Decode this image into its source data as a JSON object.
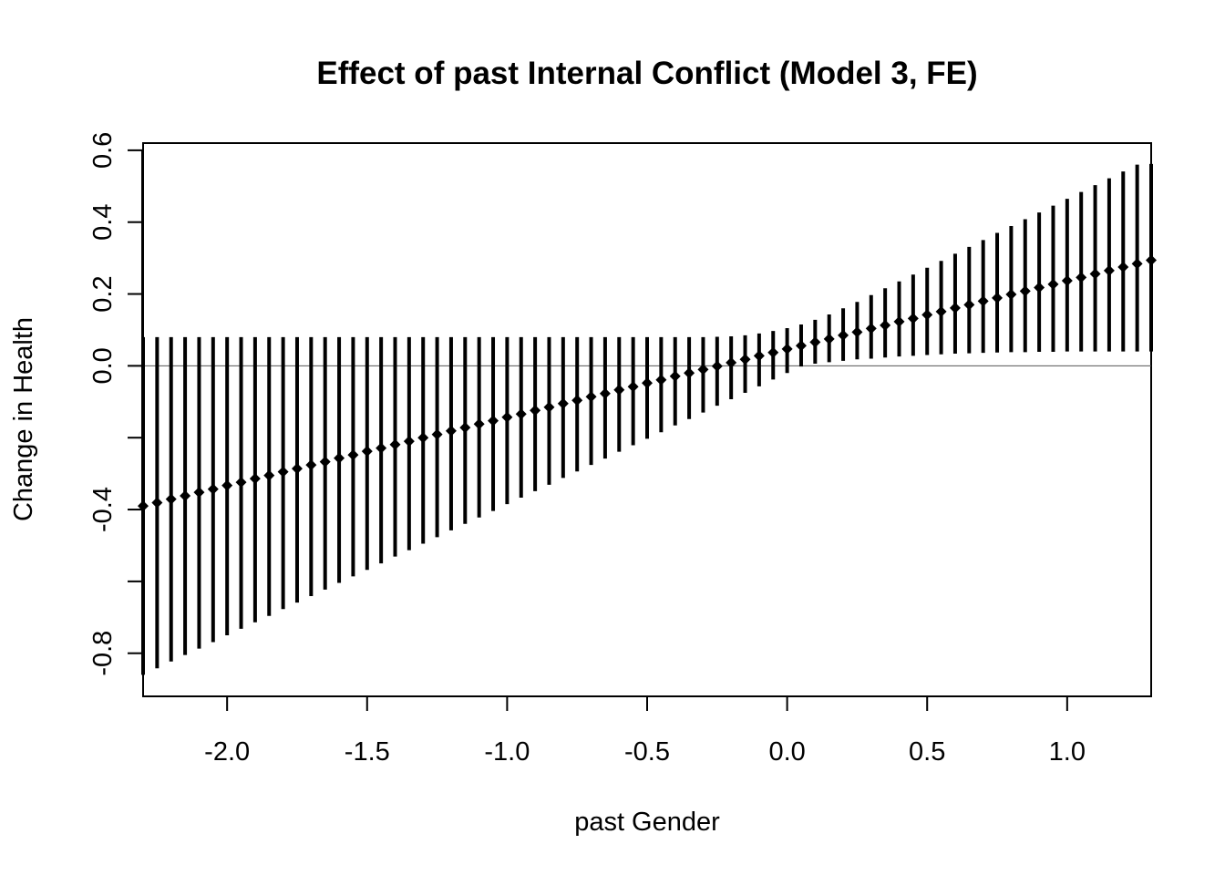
{
  "chart_data": {
    "type": "scatter",
    "title": "Effect of past Internal Conflict (Model 3, FE)",
    "xlabel": "past Gender",
    "ylabel": "Change in Health",
    "xlim": [
      -2.3,
      1.3
    ],
    "ylim": [
      -0.92,
      0.62
    ],
    "x_ticks": [
      -2.0,
      -1.5,
      -1.0,
      -0.5,
      0.0,
      0.5,
      1.0
    ],
    "x_tick_labels": [
      "-2.0",
      "-1.5",
      "-1.0",
      "-0.5",
      "0.0",
      "0.5",
      "1.0"
    ],
    "y_ticks": [
      -0.8,
      -0.6,
      -0.4,
      -0.2,
      0.0,
      0.2,
      0.4,
      0.6
    ],
    "y_tick_labels": [
      "-0.8",
      "",
      "-0.4",
      "",
      "0.0",
      "0.2",
      "0.4",
      "0.6"
    ],
    "reference_line_y": 0.0,
    "grid": false,
    "series": [
      {
        "marker": "diamond",
        "color": "#000000",
        "x": [
          -2.3,
          -2.25,
          -2.2,
          -2.15,
          -2.1,
          -2.05,
          -2.0,
          -1.95,
          -1.9,
          -1.85,
          -1.8,
          -1.75,
          -1.7,
          -1.65,
          -1.6,
          -1.55,
          -1.5,
          -1.45,
          -1.4,
          -1.35,
          -1.3,
          -1.25,
          -1.2,
          -1.15,
          -1.1,
          -1.05,
          -1.0,
          -0.95,
          -0.9,
          -0.85,
          -0.8,
          -0.75,
          -0.7,
          -0.65,
          -0.6,
          -0.55,
          -0.5,
          -0.45,
          -0.4,
          -0.35,
          -0.3,
          -0.25,
          -0.2,
          -0.15,
          -0.1,
          -0.05,
          0.0,
          0.05,
          0.1,
          0.15,
          0.2,
          0.25,
          0.3,
          0.35,
          0.4,
          0.45,
          0.5,
          0.55,
          0.6,
          0.65,
          0.7,
          0.75,
          0.8,
          0.85,
          0.9,
          0.95,
          1.0,
          1.05,
          1.1,
          1.15,
          1.2,
          1.25,
          1.3
        ],
        "y": [
          -0.39,
          -0.381,
          -0.371,
          -0.362,
          -0.352,
          -0.343,
          -0.333,
          -0.324,
          -0.314,
          -0.305,
          -0.295,
          -0.286,
          -0.276,
          -0.267,
          -0.257,
          -0.248,
          -0.238,
          -0.229,
          -0.219,
          -0.21,
          -0.2,
          -0.191,
          -0.181,
          -0.172,
          -0.162,
          -0.153,
          -0.143,
          -0.134,
          -0.124,
          -0.115,
          -0.105,
          -0.096,
          -0.086,
          -0.077,
          -0.067,
          -0.058,
          -0.048,
          -0.039,
          -0.029,
          -0.02,
          -0.01,
          -0.001,
          0.009,
          0.018,
          0.028,
          0.037,
          0.047,
          0.056,
          0.066,
          0.075,
          0.085,
          0.094,
          0.104,
          0.113,
          0.123,
          0.132,
          0.142,
          0.151,
          0.161,
          0.17,
          0.18,
          0.189,
          0.199,
          0.208,
          0.218,
          0.227,
          0.237,
          0.246,
          0.256,
          0.265,
          0.275,
          0.284,
          0.294
        ],
        "lower": [
          -0.86,
          -0.842,
          -0.823,
          -0.805,
          -0.787,
          -0.769,
          -0.75,
          -0.732,
          -0.714,
          -0.696,
          -0.677,
          -0.659,
          -0.641,
          -0.623,
          -0.604,
          -0.586,
          -0.568,
          -0.55,
          -0.531,
          -0.513,
          -0.495,
          -0.477,
          -0.458,
          -0.44,
          -0.422,
          -0.404,
          -0.385,
          -0.367,
          -0.349,
          -0.331,
          -0.312,
          -0.294,
          -0.276,
          -0.258,
          -0.239,
          -0.221,
          -0.203,
          -0.185,
          -0.166,
          -0.148,
          -0.13,
          -0.111,
          -0.093,
          -0.075,
          -0.057,
          -0.038,
          -0.02,
          -0.002,
          0.006,
          0.01,
          0.014,
          0.018,
          0.02,
          0.023,
          0.026,
          0.028,
          0.03,
          0.032,
          0.034,
          0.035,
          0.036,
          0.037,
          0.038,
          0.038,
          0.039,
          0.039,
          0.04,
          0.04,
          0.04,
          0.04,
          0.04,
          0.04,
          0.04
        ],
        "upper": [
          0.08,
          0.08,
          0.08,
          0.08,
          0.08,
          0.08,
          0.08,
          0.08,
          0.08,
          0.08,
          0.08,
          0.08,
          0.08,
          0.08,
          0.08,
          0.08,
          0.08,
          0.08,
          0.08,
          0.08,
          0.08,
          0.08,
          0.08,
          0.08,
          0.08,
          0.08,
          0.08,
          0.08,
          0.08,
          0.08,
          0.08,
          0.08,
          0.08,
          0.08,
          0.08,
          0.08,
          0.08,
          0.08,
          0.08,
          0.08,
          0.08,
          0.081,
          0.082,
          0.085,
          0.09,
          0.097,
          0.105,
          0.115,
          0.128,
          0.143,
          0.16,
          0.178,
          0.197,
          0.216,
          0.235,
          0.254,
          0.273,
          0.292,
          0.312,
          0.331,
          0.35,
          0.37,
          0.389,
          0.408,
          0.427,
          0.446,
          0.465,
          0.484,
          0.503,
          0.522,
          0.541,
          0.56,
          0.562
        ]
      }
    ]
  }
}
